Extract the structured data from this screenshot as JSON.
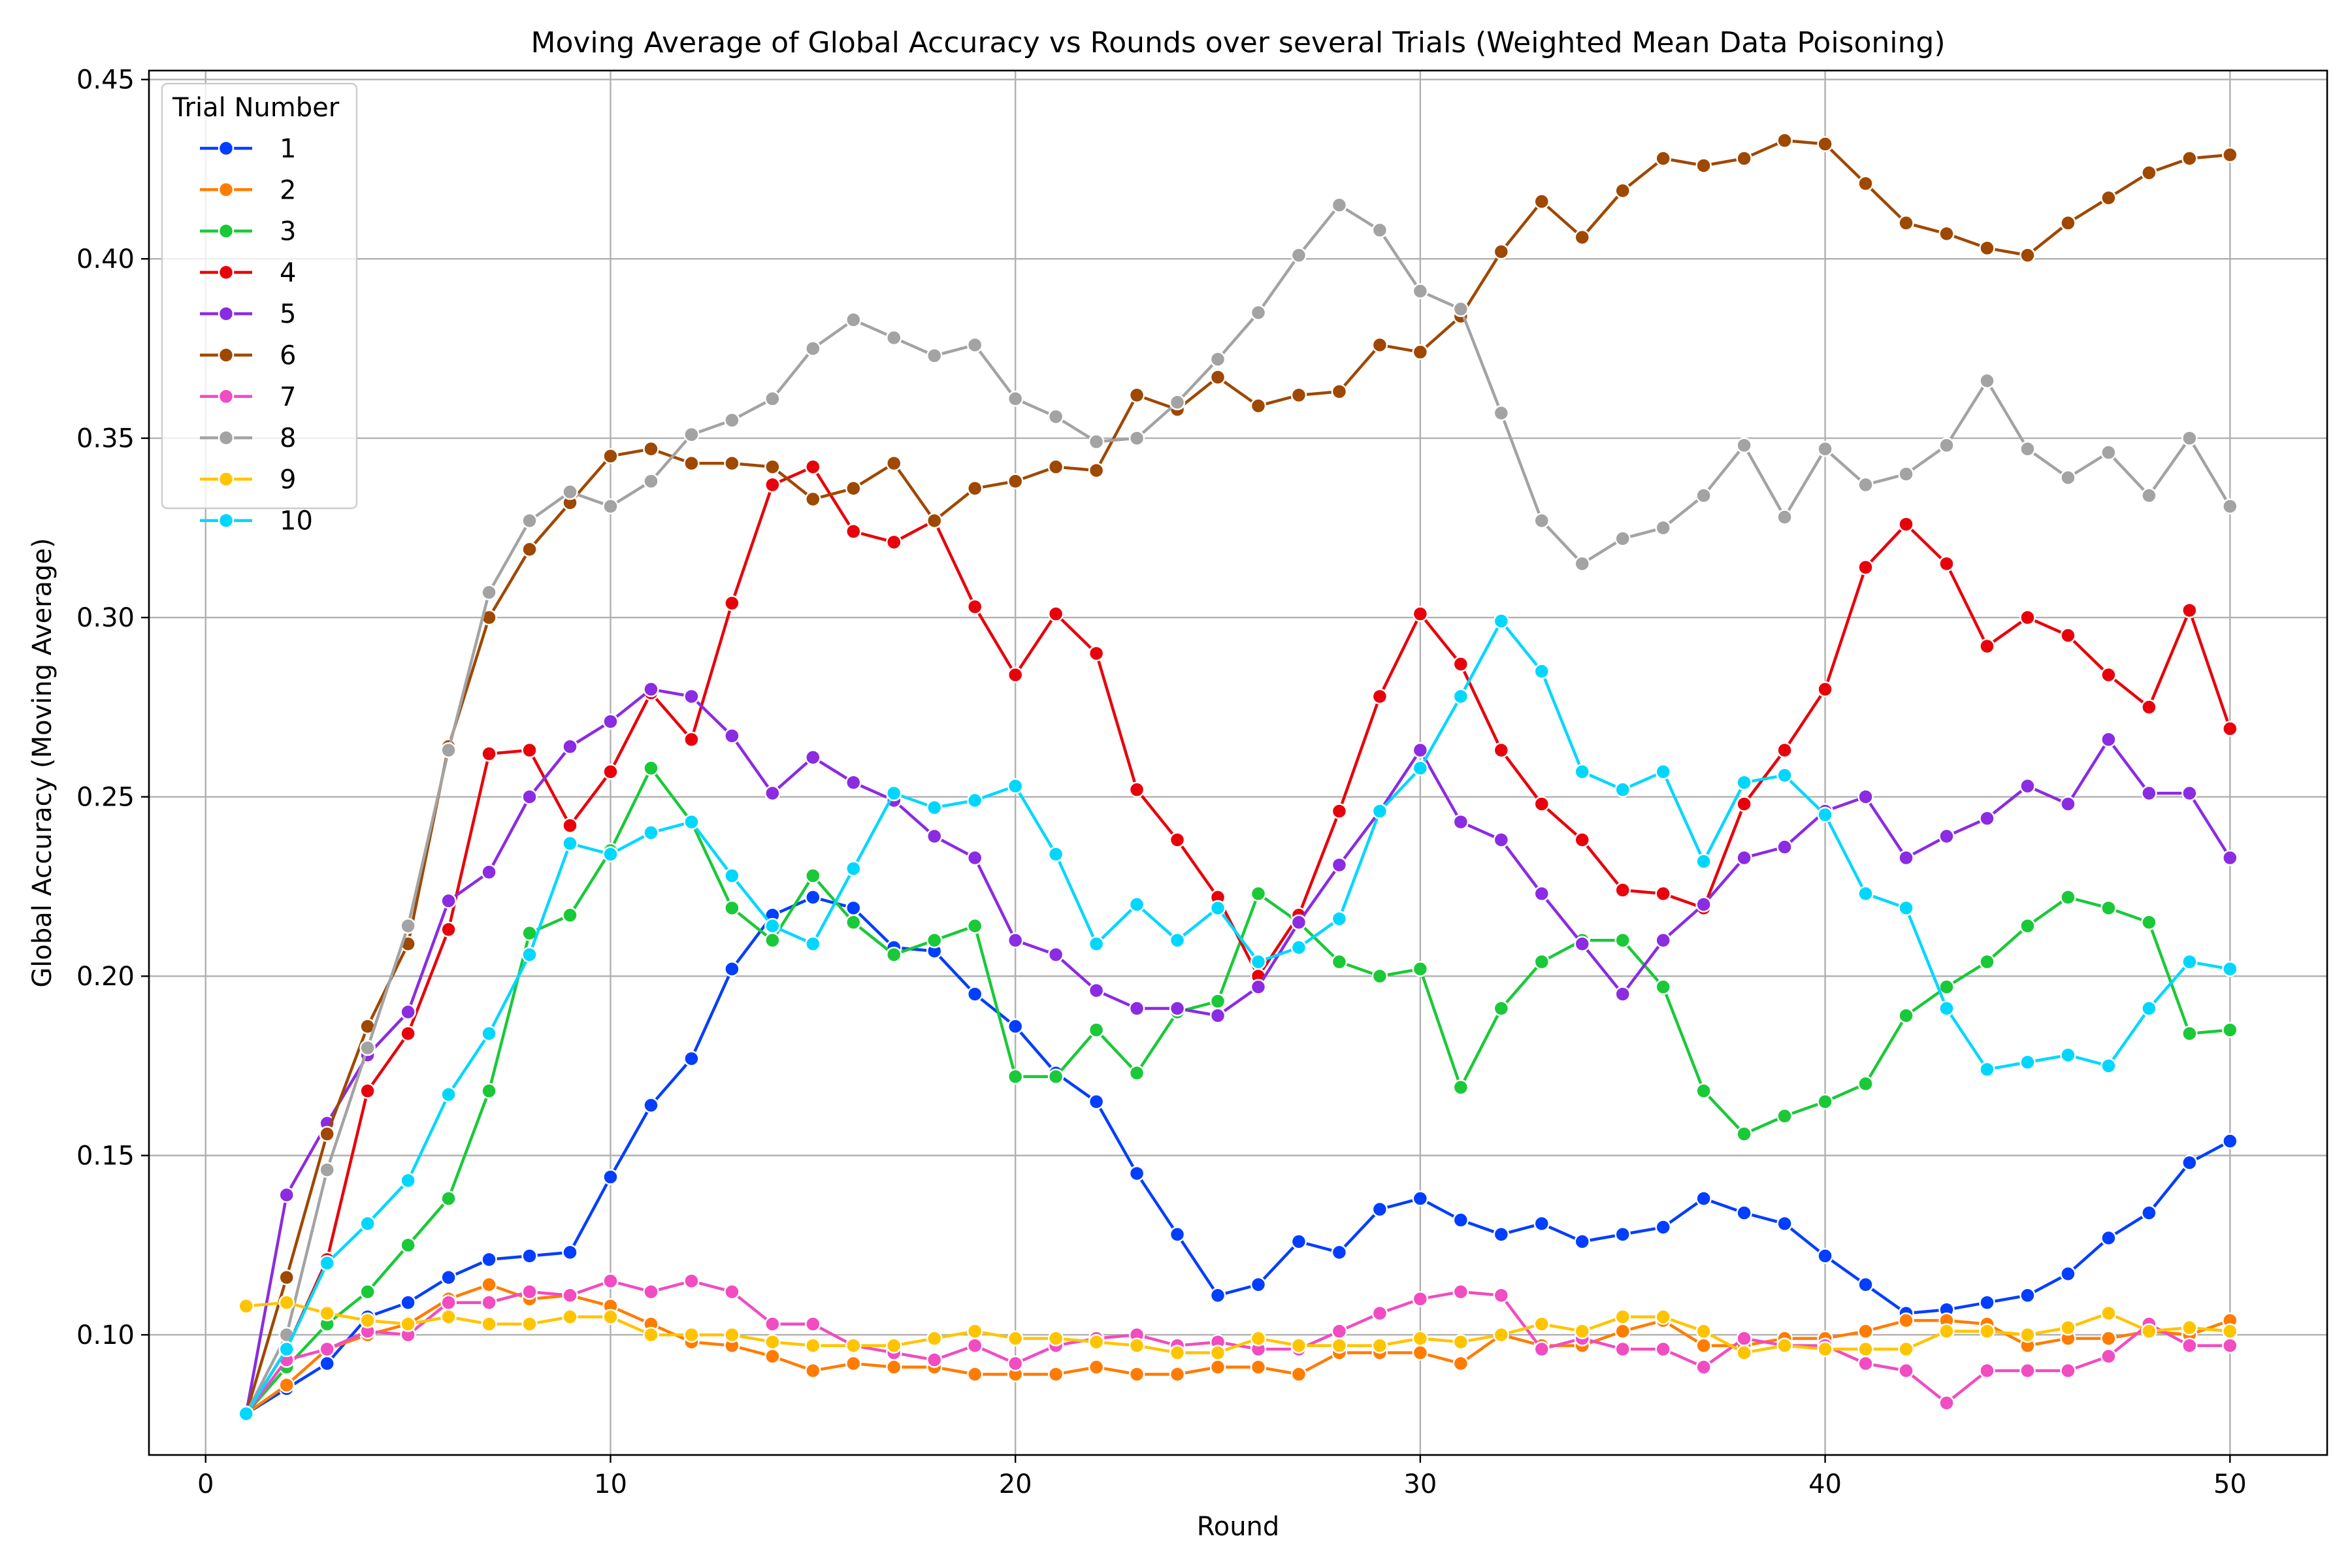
{
  "chart_data": {
    "type": "line",
    "title": "Moving Average of Global Accuracy vs Rounds over several Trials (Weighted Mean Data Poisoning)",
    "xlabel": "Round",
    "ylabel": "Global Accuracy (Moving Average)",
    "xlim": [
      -1.4,
      52.4
    ],
    "ylim": [
      0.0665,
      0.4525
    ],
    "xticks": [
      0,
      10,
      20,
      30,
      40,
      50
    ],
    "xtick_labels": [
      "0",
      "10",
      "20",
      "30",
      "40",
      "50"
    ],
    "yticks": [
      0.1,
      0.15,
      0.2,
      0.25,
      0.3,
      0.35,
      0.4,
      0.45
    ],
    "ytick_labels": [
      "0.10",
      "0.15",
      "0.20",
      "0.25",
      "0.30",
      "0.35",
      "0.40",
      "0.45"
    ],
    "grid": true,
    "legend": {
      "title": "Trial Number",
      "position": "top-left"
    },
    "x": [
      1,
      2,
      3,
      4,
      5,
      6,
      7,
      8,
      9,
      10,
      11,
      12,
      13,
      14,
      15,
      16,
      17,
      18,
      19,
      20,
      21,
      22,
      23,
      24,
      25,
      26,
      27,
      28,
      29,
      30,
      31,
      32,
      33,
      34,
      35,
      36,
      37,
      38,
      39,
      40,
      41,
      42,
      43,
      44,
      45,
      46,
      47,
      48,
      49,
      50
    ],
    "series": [
      {
        "name": "1",
        "color": "#023eff",
        "values": [
          0.078,
          0.085,
          0.092,
          0.105,
          0.109,
          0.116,
          0.121,
          0.122,
          0.123,
          0.144,
          0.164,
          0.177,
          0.202,
          0.217,
          0.222,
          0.219,
          0.208,
          0.207,
          0.195,
          0.186,
          0.173,
          0.165,
          0.145,
          0.128,
          0.111,
          0.114,
          0.126,
          0.123,
          0.135,
          0.138,
          0.132,
          0.128,
          0.131,
          0.126,
          0.128,
          0.13,
          0.138,
          0.134,
          0.131,
          0.122,
          0.114,
          0.106,
          0.107,
          0.109,
          0.111,
          0.117,
          0.127,
          0.134,
          0.148,
          0.154
        ]
      },
      {
        "name": "2",
        "color": "#ff7c00",
        "values": [
          0.078,
          0.086,
          0.096,
          0.1,
          0.103,
          0.11,
          0.114,
          0.11,
          0.111,
          0.108,
          0.103,
          0.098,
          0.097,
          0.094,
          0.09,
          0.092,
          0.091,
          0.091,
          0.089,
          0.089,
          0.089,
          0.091,
          0.089,
          0.089,
          0.091,
          0.091,
          0.089,
          0.095,
          0.095,
          0.095,
          0.092,
          0.1,
          0.097,
          0.097,
          0.101,
          0.104,
          0.097,
          0.097,
          0.099,
          0.099,
          0.101,
          0.104,
          0.104,
          0.103,
          0.097,
          0.099,
          0.099,
          0.101,
          0.1,
          0.104
        ]
      },
      {
        "name": "3",
        "color": "#1ac938",
        "values": [
          0.078,
          0.091,
          0.103,
          0.112,
          0.125,
          0.138,
          0.168,
          0.212,
          0.217,
          0.235,
          0.258,
          0.243,
          0.219,
          0.21,
          0.228,
          0.215,
          0.206,
          0.21,
          0.214,
          0.172,
          0.172,
          0.185,
          0.173,
          0.19,
          0.193,
          0.223,
          0.215,
          0.204,
          0.2,
          0.202,
          0.169,
          0.191,
          0.204,
          0.21,
          0.21,
          0.197,
          0.168,
          0.156,
          0.161,
          0.165,
          0.17,
          0.189,
          0.197,
          0.204,
          0.214,
          0.222,
          0.219,
          0.215,
          0.184,
          0.185
        ]
      },
      {
        "name": "4",
        "color": "#e8000b",
        "values": [
          0.078,
          0.096,
          0.121,
          0.168,
          0.184,
          0.213,
          0.262,
          0.263,
          0.242,
          0.257,
          0.279,
          0.266,
          0.304,
          0.337,
          0.342,
          0.324,
          0.321,
          0.327,
          0.303,
          0.284,
          0.301,
          0.29,
          0.252,
          0.238,
          0.222,
          0.2,
          0.217,
          0.246,
          0.278,
          0.301,
          0.287,
          0.263,
          0.248,
          0.238,
          0.224,
          0.223,
          0.219,
          0.248,
          0.263,
          0.28,
          0.314,
          0.326,
          0.315,
          0.292,
          0.3,
          0.295,
          0.284,
          0.275,
          0.302,
          0.269
        ]
      },
      {
        "name": "5",
        "color": "#8b2be2",
        "values": [
          0.078,
          0.139,
          0.159,
          0.178,
          0.19,
          0.221,
          0.229,
          0.25,
          0.264,
          0.271,
          0.28,
          0.278,
          0.267,
          0.251,
          0.261,
          0.254,
          0.249,
          0.239,
          0.233,
          0.21,
          0.206,
          0.196,
          0.191,
          0.191,
          0.189,
          0.197,
          0.215,
          0.231,
          0.246,
          0.263,
          0.243,
          0.238,
          0.223,
          0.209,
          0.195,
          0.21,
          0.22,
          0.233,
          0.236,
          0.246,
          0.25,
          0.233,
          0.239,
          0.244,
          0.253,
          0.248,
          0.266,
          0.251,
          0.251,
          0.233
        ]
      },
      {
        "name": "6",
        "color": "#9f4800",
        "values": [
          0.078,
          0.116,
          0.156,
          0.186,
          0.209,
          0.264,
          0.3,
          0.319,
          0.332,
          0.345,
          0.347,
          0.343,
          0.343,
          0.342,
          0.333,
          0.336,
          0.343,
          0.327,
          0.336,
          0.338,
          0.342,
          0.341,
          0.362,
          0.358,
          0.367,
          0.359,
          0.362,
          0.363,
          0.376,
          0.374,
          0.384,
          0.402,
          0.416,
          0.406,
          0.419,
          0.428,
          0.426,
          0.428,
          0.433,
          0.432,
          0.421,
          0.41,
          0.407,
          0.403,
          0.401,
          0.41,
          0.417,
          0.424,
          0.428,
          0.429
        ]
      },
      {
        "name": "7",
        "color": "#f14cc1",
        "values": [
          0.078,
          0.093,
          0.096,
          0.101,
          0.1,
          0.109,
          0.109,
          0.112,
          0.111,
          0.115,
          0.112,
          0.115,
          0.112,
          0.103,
          0.103,
          0.097,
          0.095,
          0.093,
          0.097,
          0.092,
          0.097,
          0.099,
          0.1,
          0.097,
          0.098,
          0.096,
          0.096,
          0.101,
          0.106,
          0.11,
          0.112,
          0.111,
          0.096,
          0.099,
          0.096,
          0.096,
          0.091,
          0.099,
          0.097,
          0.097,
          0.092,
          0.09,
          0.081,
          0.09,
          0.09,
          0.09,
          0.094,
          0.103,
          0.097,
          0.097
        ]
      },
      {
        "name": "8",
        "color": "#a3a3a3",
        "values": [
          0.078,
          0.1,
          0.146,
          0.18,
          0.214,
          0.263,
          0.307,
          0.327,
          0.335,
          0.331,
          0.338,
          0.351,
          0.355,
          0.361,
          0.375,
          0.383,
          0.378,
          0.373,
          0.376,
          0.361,
          0.356,
          0.349,
          0.35,
          0.36,
          0.372,
          0.385,
          0.401,
          0.415,
          0.408,
          0.391,
          0.386,
          0.357,
          0.327,
          0.315,
          0.322,
          0.325,
          0.334,
          0.348,
          0.328,
          0.347,
          0.337,
          0.34,
          0.348,
          0.366,
          0.347,
          0.339,
          0.346,
          0.334,
          0.35,
          0.331
        ]
      },
      {
        "name": "9",
        "color": "#ffc400",
        "values": [
          0.108,
          0.109,
          0.106,
          0.104,
          0.103,
          0.105,
          0.103,
          0.103,
          0.105,
          0.105,
          0.1,
          0.1,
          0.1,
          0.098,
          0.097,
          0.097,
          0.097,
          0.099,
          0.101,
          0.099,
          0.099,
          0.098,
          0.097,
          0.095,
          0.095,
          0.099,
          0.097,
          0.097,
          0.097,
          0.099,
          0.098,
          0.1,
          0.103,
          0.101,
          0.105,
          0.105,
          0.101,
          0.095,
          0.097,
          0.096,
          0.096,
          0.096,
          0.101,
          0.101,
          0.1,
          0.102,
          0.106,
          0.101,
          0.102,
          0.101
        ]
      },
      {
        "name": "10",
        "color": "#00d7ff",
        "values": [
          0.078,
          0.096,
          0.12,
          0.131,
          0.143,
          0.167,
          0.184,
          0.206,
          0.237,
          0.234,
          0.24,
          0.243,
          0.228,
          0.214,
          0.209,
          0.23,
          0.251,
          0.247,
          0.249,
          0.253,
          0.234,
          0.209,
          0.22,
          0.21,
          0.219,
          0.204,
          0.208,
          0.216,
          0.246,
          0.258,
          0.278,
          0.299,
          0.285,
          0.257,
          0.252,
          0.257,
          0.232,
          0.254,
          0.256,
          0.245,
          0.223,
          0.219,
          0.191,
          0.174,
          0.176,
          0.178,
          0.175,
          0.191,
          0.204,
          0.202
        ]
      }
    ]
  }
}
